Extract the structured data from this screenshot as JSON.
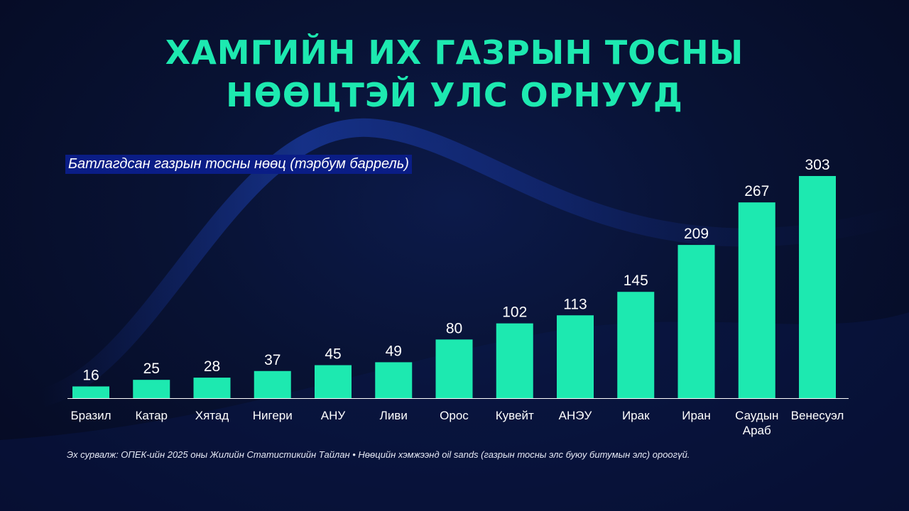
{
  "title_lines": [
    "ХАМГИЙН ИХ ГАЗРЫН ТОСНЫ",
    "НӨӨЦТЭЙ УЛС ОРНУУД"
  ],
  "source_note": "Эх сурвалж: ОПЕК-ийн 2025 оны Жилийн Статистикийн Тайлан • Нөөцийн хэмжээнд oil sands (газрын тосны элс буюу битумын элс) ороогүй.",
  "colors": {
    "bar": "#1de9b0",
    "title": "#1de9b0",
    "subtitle_bg": "#0a1d86"
  },
  "chart_data": {
    "type": "bar",
    "title": "ХАМГИЙН ИХ ГАЗРЫН ТОСНЫ НӨӨЦТЭЙ УЛС ОРНУУД",
    "ylabel": "Батлагдсан газрын тосны нөөц (тэрбум баррель)",
    "xlabel": "",
    "categories": [
      [
        "Бразил"
      ],
      [
        "Катар"
      ],
      [
        "Хятад"
      ],
      [
        "Нигери"
      ],
      [
        "АНУ"
      ],
      [
        "Ливи"
      ],
      [
        "Орос"
      ],
      [
        "Кувейт"
      ],
      [
        "АНЭУ"
      ],
      [
        "Ирак"
      ],
      [
        "Иран"
      ],
      [
        "Саудын",
        "Араб"
      ],
      [
        "Венесуэл"
      ]
    ],
    "values": [
      16,
      25,
      28,
      37,
      45,
      49,
      80,
      102,
      113,
      145,
      209,
      267,
      303
    ],
    "ylim": [
      0,
      303
    ],
    "grid": false,
    "data_labels": true
  }
}
